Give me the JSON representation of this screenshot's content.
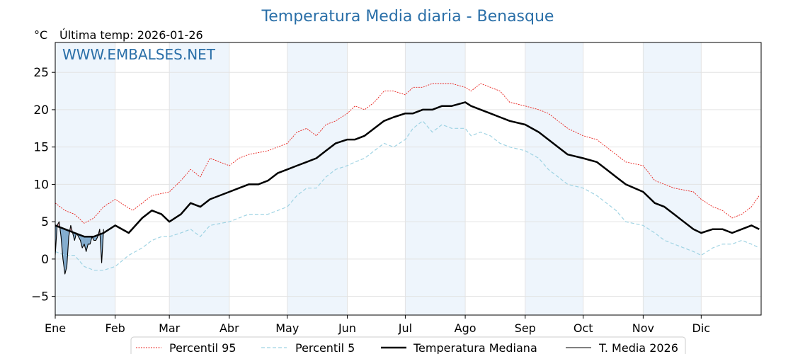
{
  "chart_data": {
    "type": "line",
    "title": "Temperatura Media diaria - Benasque",
    "unit_label": "°C",
    "last_temp_label": "Última temp: 2026-01-26",
    "watermark": "WWW.EMBALSES.NET",
    "ylim": [
      -7.5,
      29
    ],
    "yticks": [
      -5,
      0,
      5,
      10,
      15,
      20,
      25
    ],
    "xlim": [
      0,
      365
    ],
    "grid": true,
    "months": [
      {
        "label": "Ene",
        "day": 0
      },
      {
        "label": "Feb",
        "day": 31
      },
      {
        "label": "Mar",
        "day": 59
      },
      {
        "label": "Abr",
        "day": 90
      },
      {
        "label": "May",
        "day": 120
      },
      {
        "label": "Jun",
        "day": 151
      },
      {
        "label": "Jul",
        "day": 181
      },
      {
        "label": "Ago",
        "day": 212
      },
      {
        "label": "Sep",
        "day": 243
      },
      {
        "label": "Oct",
        "day": 273
      },
      {
        "label": "Nov",
        "day": 304
      },
      {
        "label": "Dic",
        "day": 334
      }
    ],
    "shaded_bands": [
      [
        0,
        31
      ],
      [
        59,
        90
      ],
      [
        120,
        151
      ],
      [
        181,
        212
      ],
      [
        243,
        273
      ],
      [
        304,
        334
      ]
    ],
    "legend_position": "bottom-center",
    "series": [
      {
        "name": "Percentil 95",
        "style": "dotted",
        "color": "#e8211c",
        "x": [
          0,
          5,
          10,
          15,
          20,
          25,
          31,
          40,
          50,
          59,
          65,
          70,
          75,
          80,
          90,
          95,
          100,
          110,
          120,
          125,
          130,
          135,
          140,
          145,
          151,
          155,
          160,
          165,
          170,
          175,
          181,
          185,
          190,
          195,
          200,
          205,
          212,
          215,
          220,
          225,
          230,
          235,
          243,
          250,
          255,
          260,
          265,
          273,
          280,
          285,
          290,
          295,
          304,
          310,
          320,
          330,
          334,
          340,
          345,
          350,
          355,
          360,
          364
        ],
        "values": [
          7.5,
          6.5,
          6.0,
          4.8,
          5.5,
          7.0,
          8.0,
          6.5,
          8.5,
          9.0,
          10.5,
          12.0,
          11.0,
          13.5,
          12.5,
          13.5,
          14.0,
          14.5,
          15.5,
          17.0,
          17.5,
          16.5,
          18.0,
          18.5,
          19.5,
          20.5,
          20.0,
          21.0,
          22.5,
          22.5,
          22.0,
          23.0,
          23.0,
          23.5,
          23.5,
          23.5,
          23.0,
          22.5,
          23.5,
          23.0,
          22.5,
          21.0,
          20.5,
          20.0,
          19.5,
          18.5,
          17.5,
          16.5,
          16.0,
          15.0,
          14.0,
          13.0,
          12.5,
          10.5,
          9.5,
          9.0,
          8.0,
          7.0,
          6.5,
          5.5,
          6.0,
          7.0,
          8.5
        ]
      },
      {
        "name": "Percentil 5",
        "style": "dashed",
        "color": "#9fd3e3",
        "x": [
          0,
          5,
          10,
          15,
          20,
          25,
          31,
          38,
          45,
          50,
          55,
          59,
          65,
          70,
          75,
          80,
          90,
          95,
          100,
          110,
          120,
          125,
          130,
          135,
          140,
          145,
          151,
          155,
          160,
          165,
          170,
          175,
          181,
          185,
          190,
          195,
          200,
          205,
          212,
          215,
          220,
          225,
          230,
          235,
          243,
          250,
          255,
          260,
          265,
          273,
          280,
          285,
          290,
          295,
          304,
          310,
          315,
          320,
          325,
          330,
          334,
          340,
          345,
          350,
          355,
          360,
          364
        ],
        "values": [
          1.0,
          0.5,
          0.5,
          -1.0,
          -1.5,
          -1.5,
          -1.0,
          0.5,
          1.5,
          2.5,
          3.0,
          3.0,
          3.5,
          4.0,
          3.0,
          4.5,
          5.0,
          5.5,
          6.0,
          6.0,
          7.0,
          8.5,
          9.5,
          9.5,
          11.0,
          12.0,
          12.5,
          13.0,
          13.5,
          14.5,
          15.5,
          15.0,
          16.0,
          17.5,
          18.5,
          17.0,
          18.0,
          17.5,
          17.5,
          16.5,
          17.0,
          16.5,
          15.5,
          15.0,
          14.5,
          13.5,
          12.0,
          11.0,
          10.0,
          9.5,
          8.5,
          7.5,
          6.5,
          5.0,
          4.5,
          3.5,
          2.5,
          2.0,
          1.5,
          1.0,
          0.5,
          1.5,
          2.0,
          2.0,
          2.5,
          2.0,
          1.5
        ]
      },
      {
        "name": "Temperatura Mediana",
        "style": "solid-thick",
        "color": "#000000",
        "x": [
          0,
          5,
          10,
          15,
          20,
          25,
          31,
          38,
          45,
          50,
          55,
          59,
          65,
          70,
          75,
          80,
          90,
          95,
          100,
          105,
          110,
          115,
          120,
          125,
          130,
          135,
          140,
          145,
          151,
          155,
          160,
          165,
          170,
          175,
          181,
          185,
          190,
          195,
          200,
          205,
          212,
          215,
          220,
          225,
          230,
          235,
          243,
          250,
          255,
          260,
          265,
          273,
          280,
          285,
          290,
          295,
          304,
          310,
          315,
          320,
          325,
          330,
          334,
          340,
          345,
          350,
          355,
          360,
          364
        ],
        "values": [
          4.5,
          4.0,
          3.5,
          3.0,
          3.0,
          3.5,
          4.5,
          3.5,
          5.5,
          6.5,
          6.0,
          5.0,
          6.0,
          7.5,
          7.0,
          8.0,
          9.0,
          9.5,
          10.0,
          10.0,
          10.5,
          11.5,
          12.0,
          12.5,
          13.0,
          13.5,
          14.5,
          15.5,
          16.0,
          16.0,
          16.5,
          17.5,
          18.5,
          19.0,
          19.5,
          19.5,
          20.0,
          20.0,
          20.5,
          20.5,
          21.0,
          20.5,
          20.0,
          19.5,
          19.0,
          18.5,
          18.0,
          17.0,
          16.0,
          15.0,
          14.0,
          13.5,
          13.0,
          12.0,
          11.0,
          10.0,
          9.0,
          7.5,
          7.0,
          6.0,
          5.0,
          4.0,
          3.5,
          4.0,
          4.0,
          3.5,
          4.0,
          4.5,
          4.0
        ]
      },
      {
        "name": "T. Media 2026",
        "style": "solid-thin",
        "color": "#000000",
        "fill_above_color": "#e8a0a8",
        "fill_below_color": "#2a70a8",
        "x": [
          0,
          1,
          2,
          3,
          4,
          5,
          6,
          7,
          8,
          9,
          10,
          11,
          12,
          13,
          14,
          15,
          16,
          17,
          18,
          19,
          20,
          21,
          22,
          23,
          24,
          25
        ],
        "values": [
          0.5,
          4.5,
          5.0,
          3.0,
          0.0,
          -2.0,
          -1.0,
          3.0,
          4.5,
          3.5,
          2.5,
          3.5,
          3.0,
          2.5,
          1.5,
          2.0,
          1.0,
          2.0,
          2.0,
          3.0,
          2.5,
          2.5,
          3.0,
          4.0,
          -0.5,
          4.0
        ]
      }
    ]
  }
}
